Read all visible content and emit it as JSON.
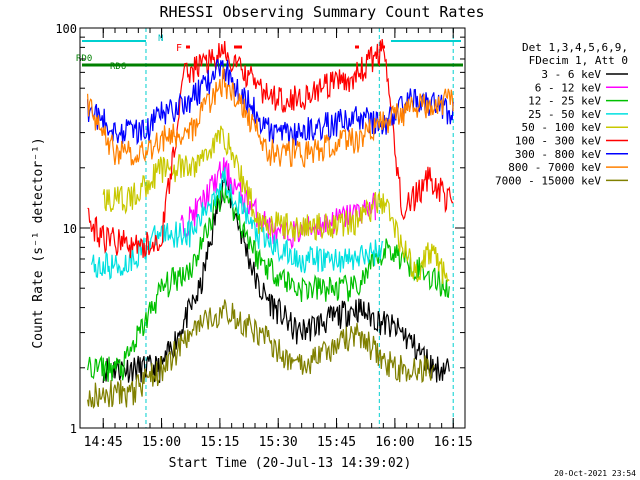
{
  "chart_data": {
    "type": "line",
    "title": "RHESSI Observing Summary Count Rates",
    "xlabel": "Start Time (20-Jul-13 14:39:02)",
    "ylabel": "Count Rate (s⁻¹ detector⁻¹)",
    "yscale": "log",
    "ylim": [
      1,
      100
    ],
    "xlim_minutes_after_1439": [
      0,
      99
    ],
    "x_ticks": [
      "14:45",
      "15:00",
      "15:15",
      "15:30",
      "15:45",
      "16:00",
      "16:15"
    ],
    "y_ticks": [
      "1",
      "10",
      "100"
    ],
    "legend_header": [
      "Det 1,3,4,5,6,9,",
      "FDecim 1, Att 0"
    ],
    "legend_position": "right",
    "annotations": [
      "RD0",
      "RD6",
      "N",
      "F"
    ],
    "timestamp": "20-Oct-2021 23:54",
    "series": [
      {
        "name": "3 - 6 keV",
        "color": "#000000",
        "x": [
          "14:45",
          "15:00",
          "15:10",
          "15:16",
          "15:25",
          "15:35",
          "15:50",
          "16:02",
          "16:10",
          "16:14"
        ],
        "y": [
          2.0,
          2.0,
          5.0,
          18,
          5.0,
          3.0,
          4.0,
          3.0,
          2.0,
          2.0
        ]
      },
      {
        "name": "6 - 12 keV",
        "color": "#ff00ff",
        "x": [
          "15:05",
          "15:10",
          "15:16",
          "15:20",
          "15:30",
          "15:45",
          "15:55"
        ],
        "y": [
          10,
          13,
          20,
          15,
          9,
          11,
          13
        ]
      },
      {
        "name": "12 - 25 keV",
        "color": "#00c000",
        "x": [
          "14:41",
          "14:50",
          "15:00",
          "15:08",
          "15:16",
          "15:25",
          "15:35",
          "15:50",
          "15:58",
          "16:14"
        ],
        "y": [
          2.0,
          2.0,
          5.0,
          6.5,
          16,
          7,
          5.0,
          5.0,
          8,
          5.0
        ]
      },
      {
        "name": "25 - 50 keV",
        "color": "#00e0e0",
        "x": [
          "14:42",
          "14:50",
          "15:00",
          "15:08",
          "15:16",
          "15:25",
          "15:35",
          "15:50",
          "15:57"
        ],
        "y": [
          6.5,
          6.5,
          9.5,
          9.5,
          18,
          9,
          7,
          7,
          8
        ]
      },
      {
        "name": "50 - 100 keV",
        "color": "#c8c800",
        "x": [
          "14:45",
          "14:52",
          "15:00",
          "15:08",
          "15:16",
          "15:25",
          "15:35",
          "15:50",
          "15:57",
          "16:05",
          "16:10",
          "16:14"
        ],
        "y": [
          14,
          14,
          20,
          20,
          30,
          11,
          10,
          11,
          14,
          6,
          8,
          5
        ]
      },
      {
        "name": "100 - 300 keV",
        "color": "#ff0000",
        "x": [
          "14:41",
          "14:45",
          "14:55",
          "15:00",
          "15:06",
          "15:16",
          "15:28",
          "15:35",
          "15:50",
          "15:57",
          "16:02",
          "16:09",
          "16:15"
        ],
        "y": [
          11,
          9,
          8,
          9,
          60,
          75,
          45,
          45,
          58,
          80,
          12,
          18,
          13
        ]
      },
      {
        "name": "300 - 800 keV",
        "color": "#0000ff",
        "x": [
          "14:41",
          "14:48",
          "14:56",
          "15:00",
          "15:08",
          "15:16",
          "15:28",
          "15:38",
          "15:50",
          "15:57",
          "16:05",
          "16:15"
        ],
        "y": [
          40,
          31,
          31,
          37,
          45,
          65,
          30,
          31,
          36,
          33,
          45,
          38
        ]
      },
      {
        "name": "800 - 7000 keV",
        "color": "#ff8000",
        "x": [
          "14:41",
          "14:48",
          "14:56",
          "15:00",
          "15:08",
          "15:16",
          "15:28",
          "15:38",
          "15:50",
          "15:57",
          "16:05",
          "16:15"
        ],
        "y": [
          42,
          24,
          24,
          28,
          32,
          55,
          24,
          24,
          28,
          34,
          40,
          45
        ]
      },
      {
        "name": "7000 - 15000 keV",
        "color": "#808000",
        "x": [
          "14:41",
          "14:52",
          "15:00",
          "15:08",
          "15:16",
          "15:25",
          "15:35",
          "15:50",
          "16:00",
          "16:10"
        ],
        "y": [
          1.5,
          1.5,
          2.0,
          3.0,
          4.0,
          3.0,
          2.0,
          3.0,
          2.0,
          2.0
        ]
      }
    ]
  }
}
